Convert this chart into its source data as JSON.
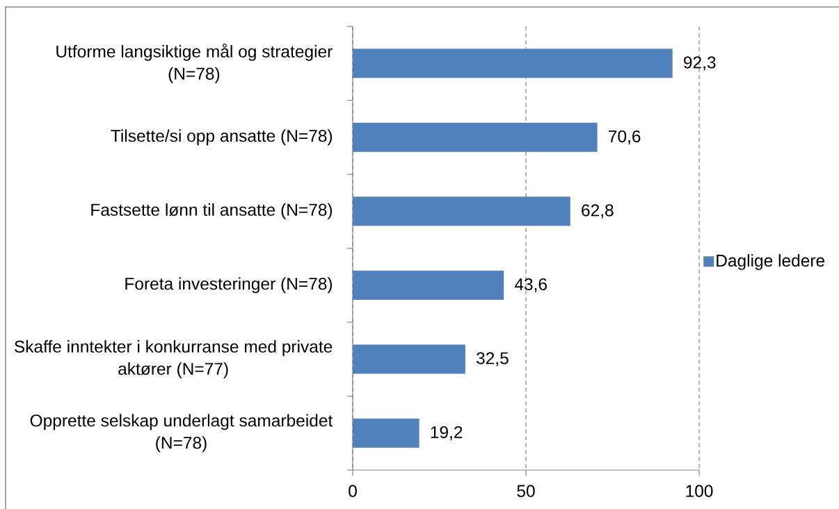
{
  "chart_data": {
    "type": "bar",
    "orientation": "horizontal",
    "categories": [
      "Utforme langsiktige mål og strategier (N=78)",
      "Tilsette/si opp ansatte (N=78)",
      "Fastsette lønn til ansatte (N=78)",
      "Foreta investeringer (N=78)",
      "Skaffe inntekter i konkurranse med private aktører (N=77)",
      "Opprette selskap underlagt samarbeidet (N=78)"
    ],
    "series": [
      {
        "name": "Daglige ledere",
        "color": "#4f81bd",
        "values": [
          92.3,
          70.6,
          62.8,
          43.6,
          32.5,
          19.2
        ],
        "value_labels": [
          "92,3",
          "70,6",
          "62,8",
          "43,6",
          "32,5",
          "19,2"
        ]
      }
    ],
    "xlim": [
      0,
      100
    ],
    "xticks": [
      0,
      50,
      100
    ],
    "grid": "x",
    "legend": "right"
  }
}
